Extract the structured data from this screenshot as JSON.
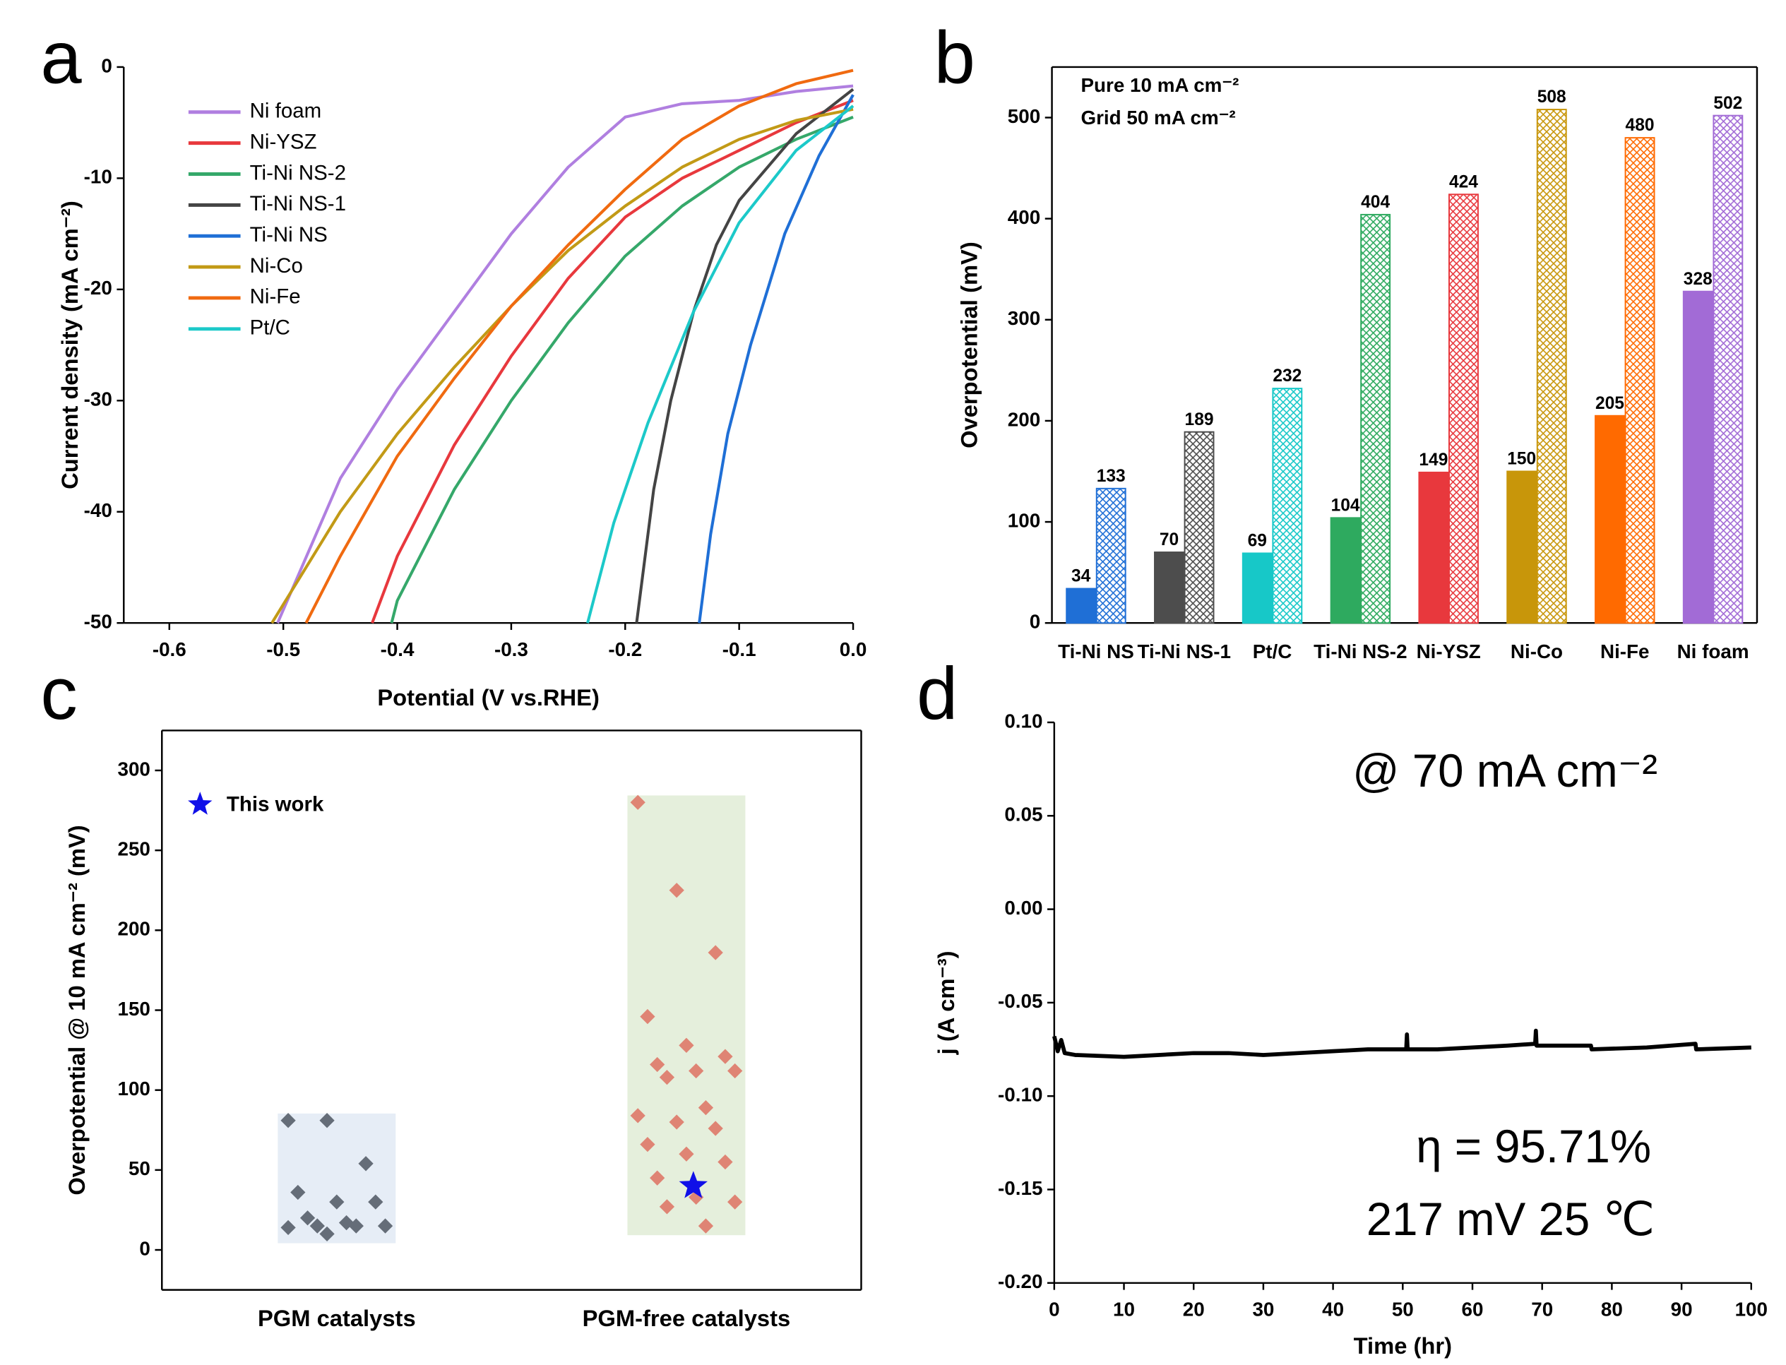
{
  "chart_data": [
    {
      "type": "line",
      "panel_label": "a",
      "xlabel": "Potential (V vs.RHE)",
      "ylabel": "Current density (mA cm⁻²)",
      "xlim": [
        -0.64,
        0
      ],
      "ylim": [
        -50,
        0
      ],
      "xticks": [
        -0.6,
        -0.5,
        -0.4,
        -0.3,
        -0.2,
        -0.1,
        {
          "value": 0,
          "label": "0.0"
        }
      ],
      "yticks": [
        0,
        -10,
        -20,
        -30,
        -40,
        -50
      ],
      "legend": "upper left",
      "series": [
        {
          "name": "Ni foam",
          "color": "#b07fe0",
          "x": [
            0,
            -0.05,
            -0.1,
            -0.15,
            -0.2,
            -0.25,
            -0.3,
            -0.35,
            -0.4,
            -0.45,
            -0.505
          ],
          "values": [
            -1.7,
            -2.2,
            -3,
            -3.3,
            -4.5,
            -9,
            -15,
            -22,
            -29,
            -37,
            -50
          ]
        },
        {
          "name": "Ni-YSZ",
          "color": "#e8383d",
          "x": [
            0,
            -0.05,
            -0.1,
            -0.15,
            -0.2,
            -0.25,
            -0.3,
            -0.35,
            -0.4,
            -0.422
          ],
          "values": [
            -3,
            -5,
            -7.5,
            -10,
            -13.5,
            -19,
            -26,
            -34,
            -44,
            -50
          ]
        },
        {
          "name": "Ti-Ni NS-2",
          "color": "#35a86a",
          "x": [
            0,
            -0.05,
            -0.1,
            -0.15,
            -0.2,
            -0.25,
            -0.3,
            -0.35,
            -0.4,
            -0.405
          ],
          "values": [
            -4.5,
            -6.5,
            -9,
            -12.5,
            -17,
            -23,
            -30,
            -38,
            -48,
            -50
          ]
        },
        {
          "name": "Ti-Ni NS-1",
          "color": "#444444",
          "x": [
            0,
            -0.05,
            -0.1,
            -0.12,
            -0.14,
            -0.16,
            -0.175,
            -0.19
          ],
          "values": [
            -2,
            -6,
            -12,
            -16,
            -22,
            -30,
            -38,
            -50
          ]
        },
        {
          "name": "Ti-Ni NS",
          "color": "#1f6fd6",
          "x": [
            0,
            -0.03,
            -0.06,
            -0.09,
            -0.11,
            -0.125,
            -0.135
          ],
          "values": [
            -2.5,
            -8,
            -15,
            -25,
            -33,
            -42,
            -50
          ]
        },
        {
          "name": "Ni-Co",
          "color": "#c29a16",
          "x": [
            0,
            -0.05,
            -0.1,
            -0.15,
            -0.2,
            -0.25,
            -0.3,
            -0.35,
            -0.4,
            -0.45,
            -0.51
          ],
          "values": [
            -3.8,
            -4.8,
            -6.5,
            -9,
            -12.5,
            -16.5,
            -21.5,
            -27,
            -33,
            -40,
            -50
          ]
        },
        {
          "name": "Ni-Fe",
          "color": "#f06a10",
          "x": [
            0,
            -0.05,
            -0.1,
            -0.15,
            -0.2,
            -0.25,
            -0.3,
            -0.35,
            -0.4,
            -0.45,
            -0.48
          ],
          "values": [
            -0.3,
            -1.5,
            -3.5,
            -6.5,
            -11,
            -16,
            -21.5,
            -28,
            -35,
            -44,
            -50
          ]
        },
        {
          "name": "Pt/C",
          "color": "#1cc9c9",
          "x": [
            0,
            -0.05,
            -0.1,
            -0.14,
            -0.18,
            -0.21,
            -0.233
          ],
          "values": [
            -3.5,
            -7.5,
            -14,
            -22,
            -32,
            -41,
            -50
          ]
        }
      ]
    },
    {
      "type": "bar",
      "panel_label": "b",
      "ylabel": "Overpotential (mV)",
      "frame": true,
      "categories": [
        "Ti-Ni NS",
        "Ti-Ni NS-1",
        "Pt/C",
        "Ti-Ni NS-2",
        "Ni-YSZ",
        "Ni-Co",
        "Ni-Fe",
        "Ni foam"
      ],
      "colors": [
        "#1f6fd6",
        "#4d4d4d",
        "#17c8c8",
        "#2eaa5f",
        "#e8383d",
        "#c8960a",
        "#ff6a00",
        "#a26bd6"
      ],
      "ylim": [
        0,
        550
      ],
      "yticks": [
        0,
        100,
        200,
        300,
        400,
        500
      ],
      "series": [
        {
          "name": "Pure  10 mA cm⁻²",
          "style": "solid",
          "values": [
            34,
            70,
            69,
            104,
            149,
            150,
            205,
            328
          ]
        },
        {
          "name": "Grid  50 mA cm⁻²",
          "style": "hatched",
          "values": [
            133,
            189,
            232,
            404,
            424,
            508,
            480,
            502
          ]
        }
      ]
    },
    {
      "type": "strip",
      "panel_label": "c",
      "ylabel": "Overpotential @ 10 mA cm⁻² (mV)",
      "frame": true,
      "categories": [
        "PGM catalysts",
        "PGM-free catalysts"
      ],
      "ylim": [
        -25,
        325
      ],
      "yticks": [
        0,
        50,
        100,
        150,
        200,
        250,
        300
      ],
      "groups": [
        {
          "color": "#656d78",
          "shade": "#e6edf6",
          "values": [
            81,
            81,
            54,
            36,
            30,
            30,
            20,
            17,
            15,
            15,
            15,
            14,
            10
          ]
        },
        {
          "color": "#df8474",
          "shade": "#e5efdc",
          "values": [
            280,
            225,
            186,
            146,
            128,
            121,
            116,
            112,
            112,
            108,
            89,
            84,
            80,
            76,
            66,
            60,
            55,
            45,
            33,
            30,
            27,
            15
          ]
        }
      ],
      "highlight": {
        "name": "This work",
        "category": "PGM-free catalysts",
        "value": 40,
        "color": "#1010e8"
      }
    },
    {
      "type": "line",
      "panel_label": "d",
      "xlabel": "Time (hr)",
      "ylabel": "j (A cm⁻³)",
      "xlim": [
        0,
        100
      ],
      "ylim": [
        -0.2,
        0.1
      ],
      "xticks": [
        0,
        10,
        20,
        30,
        40,
        50,
        60,
        70,
        80,
        90,
        100
      ],
      "yticks": [
        {
          "value": 0.1,
          "label": "0.10"
        },
        0.05,
        {
          "value": 0,
          "label": "0.00"
        },
        -0.05,
        {
          "value": -0.1,
          "label": "-0.10"
        },
        -0.15,
        {
          "value": -0.2,
          "label": "-0.20"
        }
      ],
      "annotations": [
        "@ 70 mA cm⁻²",
        "η = 95.71%",
        "217 mV  25 ℃"
      ],
      "series": [
        {
          "color": "#000000",
          "x": [
            0,
            0.5,
            1,
            1.5,
            3,
            10,
            15,
            20,
            25,
            30,
            35,
            40,
            45,
            47,
            50.5,
            50.6,
            50.7,
            55,
            60,
            65,
            69,
            69.1,
            69.2,
            75,
            77,
            77.1,
            85,
            92,
            92.1,
            100
          ],
          "values": [
            -0.068,
            -0.076,
            -0.07,
            -0.077,
            -0.078,
            -0.079,
            -0.078,
            -0.077,
            -0.077,
            -0.078,
            -0.077,
            -0.076,
            -0.075,
            -0.075,
            -0.075,
            -0.067,
            -0.075,
            -0.075,
            -0.074,
            -0.073,
            -0.072,
            -0.065,
            -0.073,
            -0.073,
            -0.073,
            -0.075,
            -0.074,
            -0.072,
            -0.075,
            -0.074
          ]
        }
      ]
    }
  ]
}
